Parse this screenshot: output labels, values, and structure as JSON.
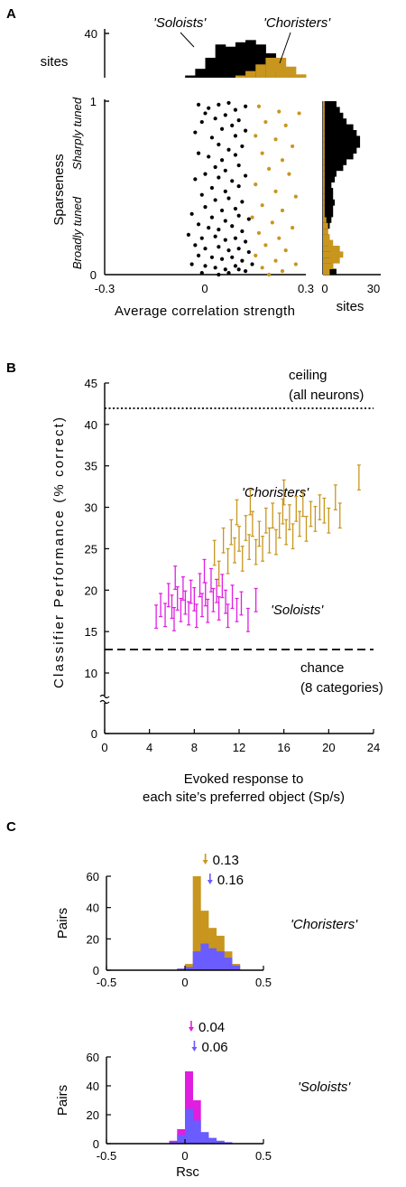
{
  "figure": {
    "panel_labels": [
      "A",
      "B",
      "C"
    ]
  },
  "colors": {
    "soloists": "#000000",
    "choristers": "#c8961e",
    "soloists_magenta": "#e01ee0",
    "shuffled_blue": "#6a5cff"
  },
  "chart_data": [
    {
      "panel": "A",
      "type": "scatter",
      "xlabel": "Average correlation strength",
      "ylabel": "Sparseness",
      "ylabel_extra": [
        "Broadly tuned",
        "Sharply tuned"
      ],
      "xlim": [
        -0.3,
        0.3
      ],
      "ylim": [
        0,
        1
      ],
      "xticks": [
        "-0.3",
        "0",
        "0.3"
      ],
      "yticks": [
        "0",
        "1"
      ],
      "top_histogram": {
        "ylabel": "sites",
        "yticks": [
          "40"
        ],
        "annotations": [
          "'Soloists'",
          "'Choristers'"
        ],
        "bins": [
          -0.3,
          -0.27,
          -0.24,
          -0.21,
          -0.18,
          -0.15,
          -0.12,
          -0.09,
          -0.06,
          -0.03,
          0,
          0.03,
          0.06,
          0.09,
          0.12,
          0.15,
          0.18,
          0.21,
          0.24,
          0.27
        ],
        "soloists": [
          0,
          0,
          0,
          0,
          0,
          0,
          0,
          0,
          2,
          8,
          18,
          30,
          28,
          32,
          34,
          30,
          22,
          6,
          0,
          0
        ],
        "choristers": [
          0,
          0,
          0,
          0,
          0,
          0,
          0,
          0,
          0,
          0,
          0,
          0,
          0,
          2,
          6,
          12,
          18,
          18,
          10,
          3
        ]
      },
      "right_histogram": {
        "xlabel": "sites",
        "xticks": [
          "0",
          "30"
        ],
        "xlim": [
          0,
          30
        ],
        "soloists": [
          8,
          6,
          5,
          4,
          4,
          3,
          3,
          3,
          4,
          5,
          6,
          6,
          7,
          6,
          6,
          5,
          7,
          8,
          12,
          14,
          18,
          20,
          22,
          22,
          20,
          18,
          14,
          12,
          10,
          8
        ],
        "choristers": [
          4,
          6,
          10,
          12,
          10,
          6,
          4,
          3,
          3,
          2,
          1,
          1,
          1,
          1,
          1,
          1,
          1,
          1,
          1,
          1,
          1,
          1,
          1,
          1,
          1,
          1,
          1,
          1,
          1,
          1
        ]
      },
      "series": [
        {
          "name": "'Soloists'",
          "points": [
            [
              -0.02,
              0.98
            ],
            [
              0.01,
              0.96
            ],
            [
              0.04,
              0.98
            ],
            [
              0.07,
              0.99
            ],
            [
              0.09,
              0.95
            ],
            [
              0.12,
              0.97
            ],
            [
              0.0,
              0.93
            ],
            [
              0.03,
              0.9
            ],
            [
              -0.01,
              0.88
            ],
            [
              0.06,
              0.92
            ],
            [
              0.1,
              0.89
            ],
            [
              0.05,
              0.84
            ],
            [
              0.08,
              0.86
            ],
            [
              -0.03,
              0.82
            ],
            [
              0.12,
              0.83
            ],
            [
              0.02,
              0.79
            ],
            [
              0.09,
              0.8
            ],
            [
              0.04,
              0.75
            ],
            [
              0.07,
              0.72
            ],
            [
              0.11,
              0.74
            ],
            [
              -0.02,
              0.7
            ],
            [
              0.01,
              0.68
            ],
            [
              0.05,
              0.66
            ],
            [
              0.09,
              0.69
            ],
            [
              0.03,
              0.62
            ],
            [
              0.06,
              0.6
            ],
            [
              0.1,
              0.63
            ],
            [
              0.0,
              0.58
            ],
            [
              -0.03,
              0.55
            ],
            [
              0.04,
              0.56
            ],
            [
              0.08,
              0.54
            ],
            [
              0.12,
              0.57
            ],
            [
              0.02,
              0.5
            ],
            [
              0.06,
              0.48
            ],
            [
              0.1,
              0.51
            ],
            [
              -0.01,
              0.46
            ],
            [
              0.03,
              0.43
            ],
            [
              0.07,
              0.44
            ],
            [
              0.11,
              0.42
            ],
            [
              0.0,
              0.39
            ],
            [
              0.05,
              0.37
            ],
            [
              0.09,
              0.38
            ],
            [
              -0.04,
              0.35
            ],
            [
              0.02,
              0.33
            ],
            [
              0.06,
              0.31
            ],
            [
              0.1,
              0.34
            ],
            [
              0.13,
              0.32
            ],
            [
              -0.02,
              0.29
            ],
            [
              0.01,
              0.27
            ],
            [
              0.04,
              0.26
            ],
            [
              0.08,
              0.28
            ],
            [
              0.11,
              0.25
            ],
            [
              -0.05,
              0.23
            ],
            [
              -0.01,
              0.21
            ],
            [
              0.03,
              0.22
            ],
            [
              0.06,
              0.2
            ],
            [
              0.09,
              0.21
            ],
            [
              0.12,
              0.19
            ],
            [
              -0.03,
              0.17
            ],
            [
              0.0,
              0.15
            ],
            [
              0.04,
              0.16
            ],
            [
              0.07,
              0.14
            ],
            [
              0.1,
              0.15
            ],
            [
              0.13,
              0.13
            ],
            [
              -0.02,
              0.11
            ],
            [
              0.02,
              0.1
            ],
            [
              0.05,
              0.09
            ],
            [
              0.08,
              0.1
            ],
            [
              0.11,
              0.08
            ],
            [
              -0.04,
              0.06
            ],
            [
              0.0,
              0.05
            ],
            [
              0.03,
              0.04
            ],
            [
              0.06,
              0.03
            ],
            [
              0.09,
              0.05
            ],
            [
              0.12,
              0.02
            ],
            [
              -0.01,
              0.01
            ],
            [
              0.04,
              0.0
            ],
            [
              0.07,
              0.01
            ],
            [
              0.1,
              0.03
            ],
            [
              0.14,
              0.06
            ]
          ]
        },
        {
          "name": "'Choristers'",
          "points": [
            [
              0.16,
              0.97
            ],
            [
              0.22,
              0.94
            ],
            [
              0.28,
              0.93
            ],
            [
              0.18,
              0.88
            ],
            [
              0.24,
              0.86
            ],
            [
              0.15,
              0.8
            ],
            [
              0.21,
              0.78
            ],
            [
              0.26,
              0.74
            ],
            [
              0.17,
              0.7
            ],
            [
              0.23,
              0.66
            ],
            [
              0.19,
              0.61
            ],
            [
              0.25,
              0.58
            ],
            [
              0.15,
              0.52
            ],
            [
              0.21,
              0.48
            ],
            [
              0.27,
              0.45
            ],
            [
              0.17,
              0.4
            ],
            [
              0.23,
              0.37
            ],
            [
              0.14,
              0.33
            ],
            [
              0.2,
              0.3
            ],
            [
              0.26,
              0.27
            ],
            [
              0.16,
              0.24
            ],
            [
              0.22,
              0.21
            ],
            [
              0.18,
              0.17
            ],
            [
              0.24,
              0.14
            ],
            [
              0.15,
              0.11
            ],
            [
              0.21,
              0.08
            ],
            [
              0.27,
              0.06
            ],
            [
              0.17,
              0.04
            ],
            [
              0.23,
              0.02
            ],
            [
              0.19,
              0.0
            ]
          ]
        }
      ]
    },
    {
      "panel": "B",
      "type": "scatter",
      "xlabel": "Evoked response to each site's preferred object (Sp/s)",
      "ylabel": "Classifier Performance (% correct)",
      "xlim": [
        0,
        24
      ],
      "ylim": [
        0,
        45
      ],
      "xticks": [
        "0",
        "4",
        "8",
        "12",
        "16",
        "20",
        "24"
      ],
      "yticks": [
        "0",
        "10",
        "15",
        "20",
        "25",
        "30",
        "35",
        "40",
        "45"
      ],
      "annotations": {
        "ceiling": [
          "ceiling",
          "(all neurons)"
        ],
        "chance": [
          "chance",
          "(8 categories)"
        ],
        "choristers": "'Choristers'",
        "soloists": "'Soloists'"
      },
      "reference_lines": [
        {
          "name": "ceiling",
          "y": 42.3,
          "style": "dotted"
        },
        {
          "name": "chance",
          "y": 12.5,
          "style": "dashed"
        }
      ],
      "series": [
        {
          "name": "'Soloists'",
          "points": [
            [
              4.6,
              16.8
            ],
            [
              5.0,
              18.2
            ],
            [
              5.4,
              17.0
            ],
            [
              5.7,
              19.4
            ],
            [
              6.0,
              18.0
            ],
            [
              6.2,
              16.5
            ],
            [
              6.5,
              19.0
            ],
            [
              6.8,
              17.6
            ],
            [
              7.0,
              20.2
            ],
            [
              7.2,
              18.5
            ],
            [
              7.5,
              17.2
            ],
            [
              7.7,
              19.8
            ],
            [
              8.0,
              18.9
            ],
            [
              8.2,
              16.9
            ],
            [
              8.5,
              20.6
            ],
            [
              8.7,
              18.2
            ],
            [
              9.0,
              19.5
            ],
            [
              9.2,
              17.5
            ],
            [
              9.5,
              21.2
            ],
            [
              9.7,
              18.8
            ],
            [
              10.0,
              19.9
            ],
            [
              10.2,
              17.8
            ],
            [
              10.5,
              20.5
            ],
            [
              10.8,
              18.6
            ],
            [
              11.0,
              16.9
            ],
            [
              11.4,
              19.2
            ],
            [
              11.8,
              17.6
            ],
            [
              12.2,
              18.4
            ],
            [
              12.8,
              16.4
            ],
            [
              13.5,
              18.8
            ],
            [
              6.3,
              21.5
            ],
            [
              8.9,
              22.3
            ]
          ],
          "err": 1.4
        },
        {
          "name": "'Choristers'",
          "points": [
            [
              9.8,
              24.5
            ],
            [
              10.2,
              22.0
            ],
            [
              10.6,
              26.0
            ],
            [
              11.0,
              23.5
            ],
            [
              11.3,
              27.0
            ],
            [
              11.6,
              24.8
            ],
            [
              12.0,
              26.2
            ],
            [
              12.3,
              23.8
            ],
            [
              12.6,
              27.5
            ],
            [
              12.9,
              25.2
            ],
            [
              13.2,
              28.0
            ],
            [
              13.5,
              24.6
            ],
            [
              13.8,
              26.8
            ],
            [
              14.1,
              25.0
            ],
            [
              14.4,
              28.4
            ],
            [
              14.7,
              26.0
            ],
            [
              15.0,
              29.0
            ],
            [
              15.3,
              25.8
            ],
            [
              15.6,
              27.8
            ],
            [
              15.9,
              29.5
            ],
            [
              16.2,
              27.0
            ],
            [
              16.5,
              28.8
            ],
            [
              16.8,
              26.5
            ],
            [
              17.1,
              29.8
            ],
            [
              17.4,
              28.0
            ],
            [
              17.7,
              30.4
            ],
            [
              18.0,
              27.4
            ],
            [
              18.4,
              29.2
            ],
            [
              18.8,
              28.6
            ],
            [
              19.2,
              30.0
            ],
            [
              19.6,
              29.6
            ],
            [
              20.0,
              28.4
            ],
            [
              20.6,
              31.2
            ],
            [
              21.0,
              29.0
            ],
            [
              22.7,
              33.6
            ],
            [
              11.8,
              29.4
            ],
            [
              13.0,
              30.6
            ],
            [
              16.0,
              31.8
            ]
          ],
          "err": 1.5
        }
      ]
    },
    {
      "panel": "C-top",
      "type": "bar",
      "title": "'Choristers'",
      "xlabel": "",
      "ylabel": "Pairs",
      "xlim": [
        -0.5,
        0.5
      ],
      "ylim": [
        0,
        60
      ],
      "xticks": [
        "-0.5",
        "0",
        "0.5"
      ],
      "yticks": [
        "0",
        "20",
        "40",
        "60"
      ],
      "bin_edges": [
        -0.1,
        -0.05,
        0.0,
        0.05,
        0.1,
        0.15,
        0.2,
        0.25,
        0.3,
        0.35
      ],
      "series": [
        {
          "name": "0.13",
          "values": [
            0,
            1,
            4,
            60,
            38,
            27,
            22,
            12,
            4
          ]
        },
        {
          "name": "0.16",
          "values": [
            0,
            1,
            2,
            12,
            17,
            14,
            12,
            8,
            3
          ]
        }
      ],
      "means": [
        {
          "label": "0.13",
          "x": 0.13
        },
        {
          "label": "0.16",
          "x": 0.16
        }
      ]
    },
    {
      "panel": "C-bottom",
      "type": "bar",
      "title": "'Soloists'",
      "xlabel": "Rsc",
      "ylabel": "Pairs",
      "xlim": [
        -0.5,
        0.5
      ],
      "ylim": [
        0,
        60
      ],
      "xticks": [
        "-0.5",
        "0",
        "0.5"
      ],
      "yticks": [
        "0",
        "20",
        "40",
        "60"
      ],
      "bin_edges": [
        -0.1,
        -0.05,
        0.0,
        0.05,
        0.1,
        0.15,
        0.2,
        0.25,
        0.3
      ],
      "series": [
        {
          "name": "0.04",
          "values": [
            2,
            10,
            50,
            30,
            6,
            2,
            1,
            0
          ]
        },
        {
          "name": "0.06",
          "values": [
            1,
            6,
            24,
            16,
            8,
            4,
            2,
            1
          ]
        }
      ],
      "means": [
        {
          "label": "0.04",
          "x": 0.04
        },
        {
          "label": "0.06",
          "x": 0.06
        }
      ]
    }
  ]
}
